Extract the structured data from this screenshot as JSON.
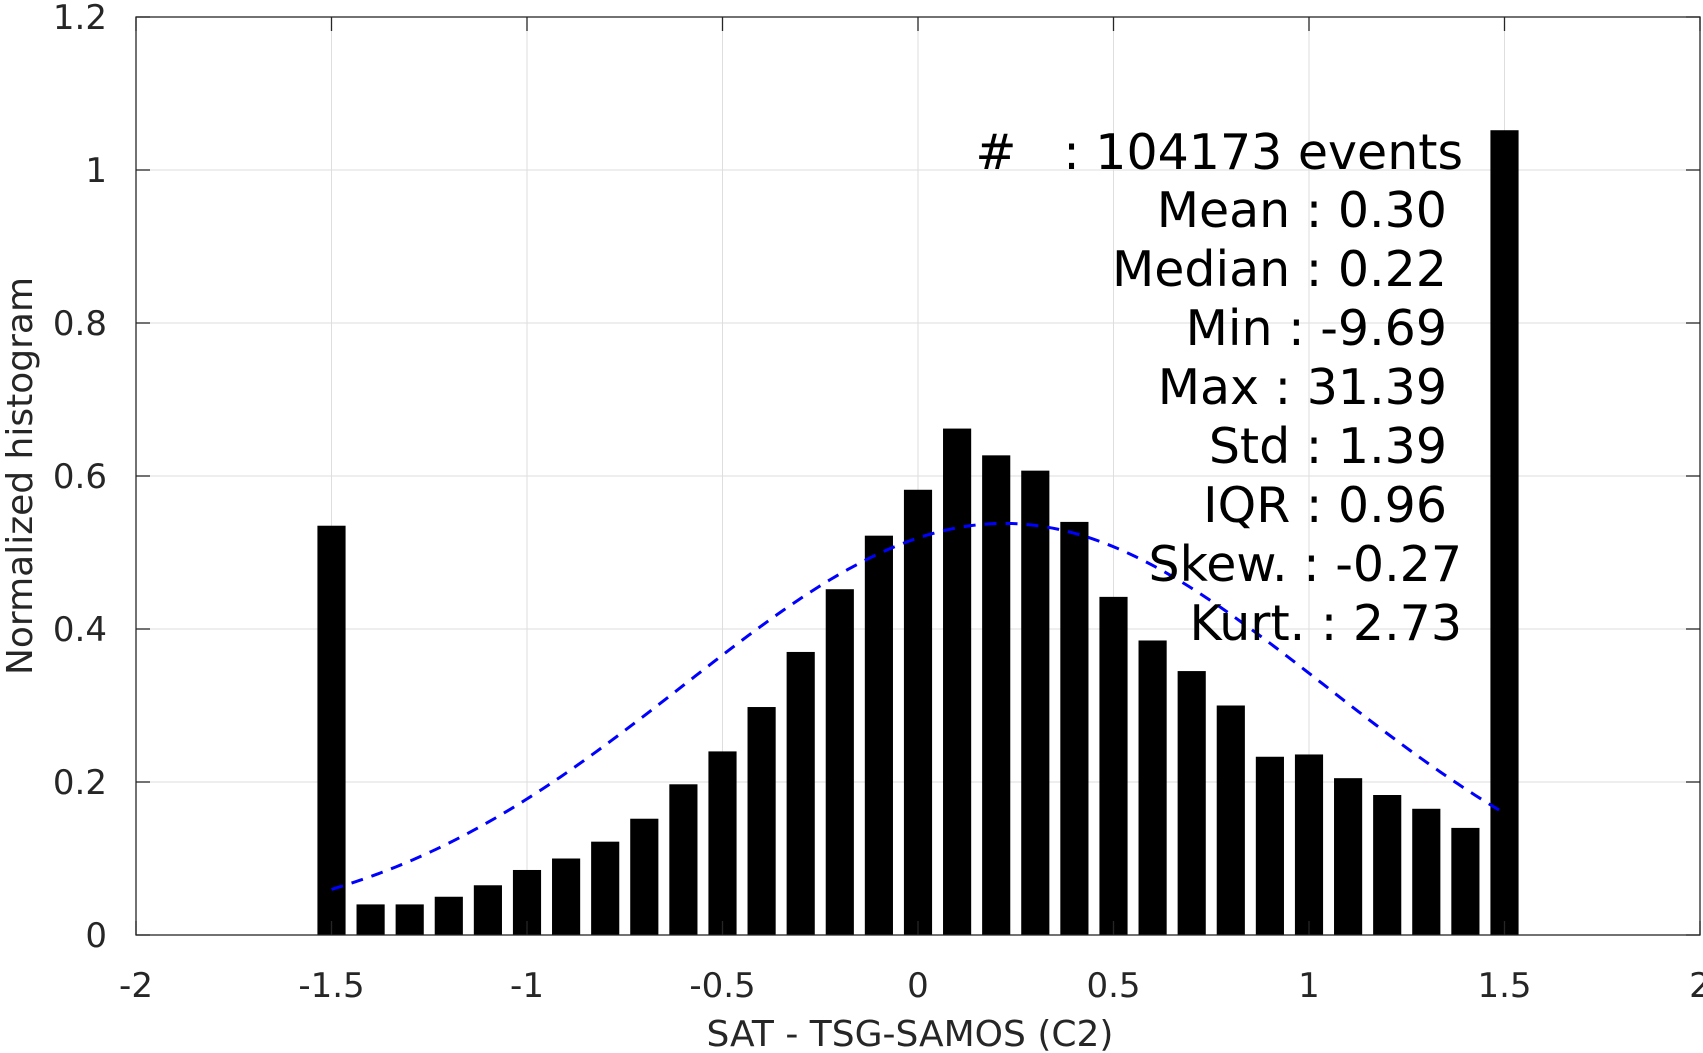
{
  "chart_data": {
    "type": "bar",
    "xlabel": "SAT - TSG-SAMOS (C2)",
    "ylabel": "Normalized histogram",
    "xlim": [
      -2,
      2
    ],
    "ylim": [
      0,
      1.2
    ],
    "grid": true,
    "x_ticks": [
      "-2",
      "-1.5",
      "-1",
      "-0.5",
      "0",
      "0.5",
      "1",
      "1.5",
      "2"
    ],
    "y_ticks": [
      "0",
      "0.2",
      "0.4",
      "0.6",
      "0.8",
      "1",
      "1.2"
    ],
    "bar_color": "#000000",
    "fit_color": "#0000ff",
    "bars": {
      "x": [
        -1.5,
        -1.4,
        -1.3,
        -1.2,
        -1.1,
        -1.0,
        -0.9,
        -0.8,
        -0.7,
        -0.6,
        -0.5,
        -0.4,
        -0.3,
        -0.2,
        -0.1,
        0.0,
        0.1,
        0.2,
        0.3,
        0.4,
        0.5,
        0.6,
        0.7,
        0.8,
        0.9,
        1.0,
        1.1,
        1.2,
        1.3,
        1.4,
        1.5
      ],
      "values": [
        0.535,
        0.04,
        0.04,
        0.05,
        0.065,
        0.085,
        0.1,
        0.122,
        0.152,
        0.197,
        0.24,
        0.298,
        0.37,
        0.452,
        0.522,
        0.582,
        0.662,
        0.627,
        0.607,
        0.54,
        0.442,
        0.385,
        0.345,
        0.3,
        0.233,
        0.236,
        0.205,
        0.183,
        0.165,
        0.14,
        1.052
      ]
    },
    "fit": {
      "style": "dashed",
      "mean": 0.22,
      "std": 0.82,
      "peak": 0.538,
      "x_range": [
        -1.5,
        1.5
      ]
    },
    "stats": {
      "events": "#   : 104173 events",
      "mean": "Mean : 0.30",
      "median": "Median : 0.22",
      "min": "Min : -9.69",
      "max": "Max : 31.39",
      "std": "Std : 1.39",
      "iqr": "IQR : 0.96",
      "skew": "Skew. : -0.27",
      "kurt": "Kurt. : 2.73"
    }
  }
}
